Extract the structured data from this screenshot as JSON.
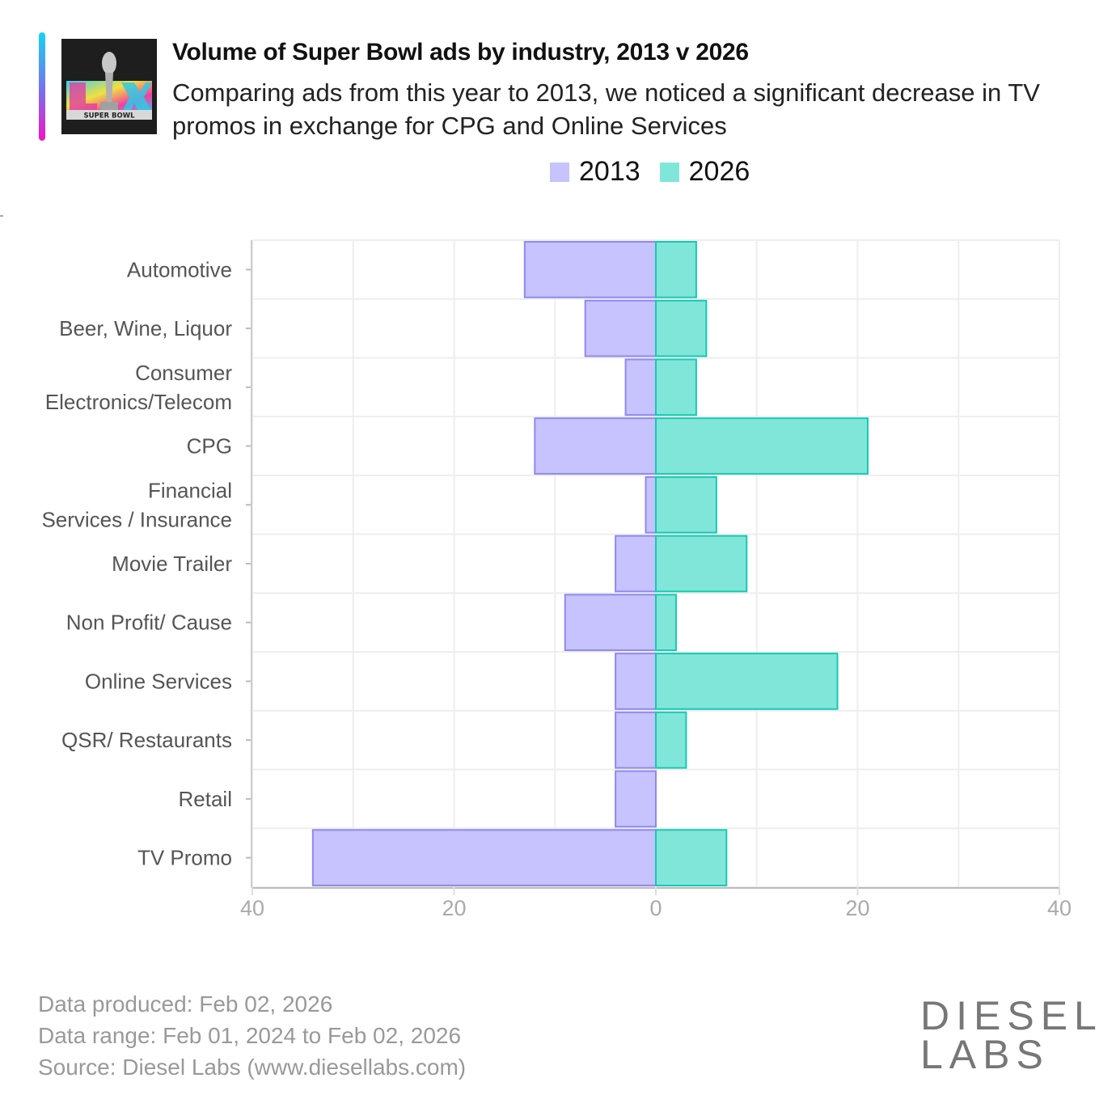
{
  "header": {
    "title": "Volume of Super Bowl ads by industry, 2013 v 2026",
    "subtitle": "Comparing ads from this year to 2013, we noticed a significant decrease in TV promos in exchange for CPG and Online Services",
    "logo": {
      "icon": "super-bowl-lix-logo",
      "text": "SUPER BOWL"
    }
  },
  "colors": {
    "series_2013_fill": "#c6c3fe",
    "series_2013_stroke": "#8f88f2",
    "series_2026_fill": "#81e6da",
    "series_2026_stroke": "#16c9b3",
    "grid": "#eeeeee",
    "axis": "#cccccc"
  },
  "chart_data": {
    "type": "bar",
    "orientation": "horizontal-diverging",
    "title": "Volume of Super Bowl ads by industry, 2013 v 2026",
    "categories": [
      "Automotive",
      "Beer, Wine, Liquor",
      "Consumer Electronics/Telecom",
      "CPG",
      "Financial Services / Insurance",
      "Movie Trailer",
      "Non Profit/ Cause",
      "Online Services",
      "QSR/ Restaurants",
      "Retail",
      "TV Promo"
    ],
    "category_lines": [
      [
        "Automotive"
      ],
      [
        "Beer, Wine, Liquor"
      ],
      [
        "Consumer ",
        "Electronics/Telecom"
      ],
      [
        "CPG"
      ],
      [
        "Financial ",
        "Services / Insurance"
      ],
      [
        "Movie Trailer"
      ],
      [
        "Non Profit/ Cause"
      ],
      [
        "Online Services"
      ],
      [
        "QSR/ Restaurants"
      ],
      [
        "Retail"
      ],
      [
        "TV Promo"
      ]
    ],
    "series": [
      {
        "name": "2013",
        "direction": "left",
        "values": [
          13,
          7,
          3,
          12,
          1,
          4,
          9,
          4,
          4,
          4,
          34
        ]
      },
      {
        "name": "2026",
        "direction": "right",
        "values": [
          4,
          5,
          4,
          21,
          6,
          9,
          2,
          18,
          3,
          0,
          7
        ]
      }
    ],
    "xlim": [
      -40,
      40
    ],
    "xticks": [
      -40,
      -20,
      0,
      20,
      40
    ],
    "xtick_labels": [
      "40",
      "20",
      "0",
      "20",
      "40"
    ],
    "grid_step": 10,
    "grid": true,
    "legend": {
      "position": "top-center",
      "entries": [
        "2013",
        "2026"
      ]
    },
    "xlabel": "",
    "ylabel": ""
  },
  "footer": {
    "lines": [
      "Data produced: Feb 02, 2026",
      "Data range: Feb 01, 2024 to Feb 02, 2026",
      "Source: Diesel Labs (www.diesellabs.com)"
    ],
    "brand_line1": "DIESEL",
    "brand_line2": "LABS"
  }
}
